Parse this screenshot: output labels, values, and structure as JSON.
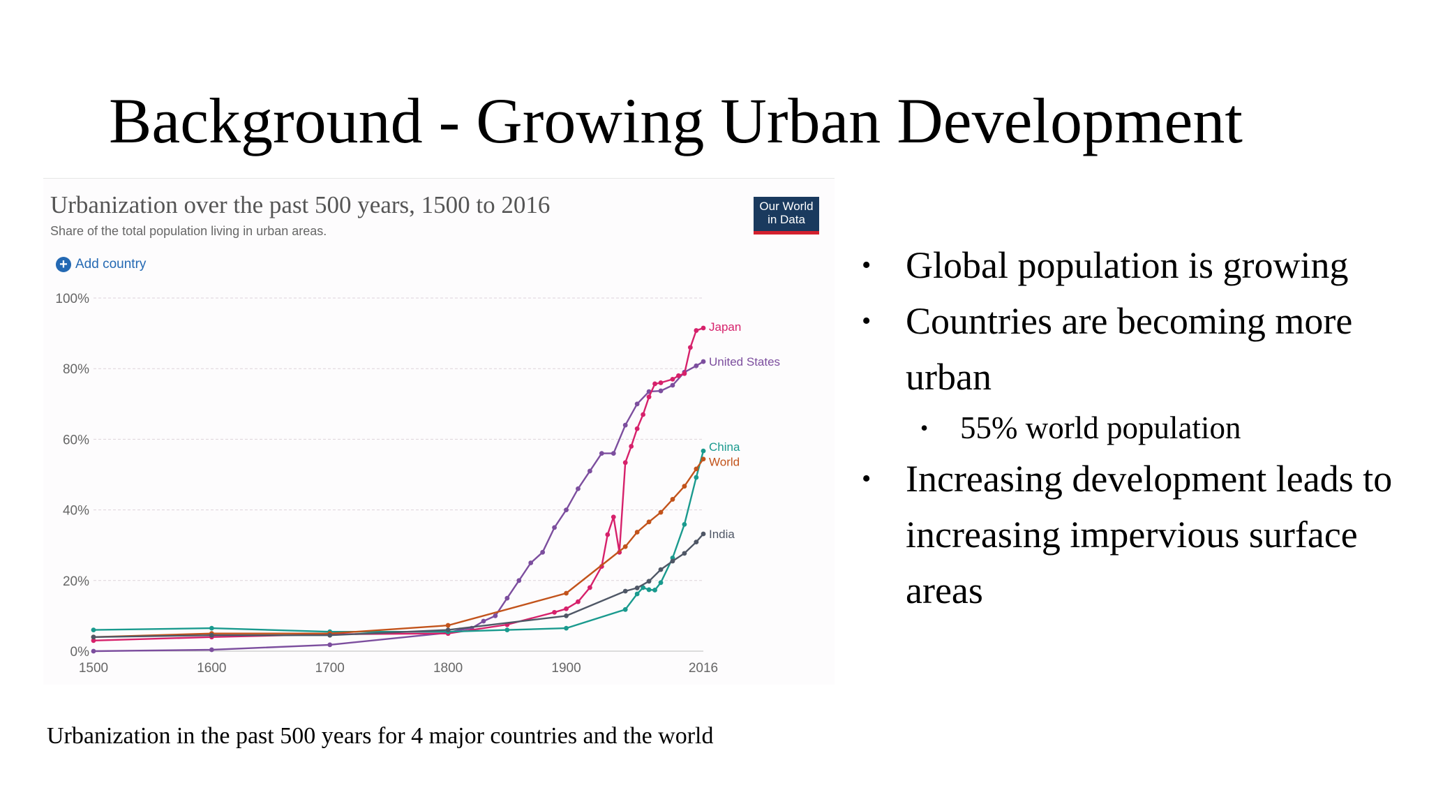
{
  "slide": {
    "title": "Background - Growing Urban Development",
    "caption": "Urbanization in the past 500 years for 4 major countries and the world",
    "bullets": [
      "Global population is growing",
      "Countries are becoming more urban",
      "Increasing development leads to increasing impervious surface areas"
    ],
    "sub_bullets": [
      "55% world population"
    ]
  },
  "chart_header": {
    "title": "Urbanization over the past 500 years, 1500 to 2016",
    "subtitle": "Share of the total population living in urban areas.",
    "logo_line1": "Our World",
    "logo_line2": "in Data",
    "add_country_label": "Add country",
    "add_icon": "plus-circle-icon"
  },
  "colors": {
    "Japan": "#d6216b",
    "United States": "#7c4e9e",
    "China": "#1a9a8e",
    "World": "#c2531b",
    "India": "#4f5766",
    "owid_navy": "#1a3a5e",
    "owid_red": "#d3202e",
    "link_blue": "#2469b3"
  },
  "chart_data": {
    "type": "line",
    "title": "Urbanization over the past 500 years, 1500 to 2016",
    "subtitle": "Share of the total population living in urban areas.",
    "xlabel": "",
    "ylabel": "",
    "xlim": [
      1500,
      2016
    ],
    "ylim": [
      0,
      100
    ],
    "x_ticks": [
      "1500",
      "1600",
      "1700",
      "1800",
      "1900",
      "2016"
    ],
    "y_ticks": [
      "0%",
      "20%",
      "40%",
      "60%",
      "80%",
      "100%"
    ],
    "grid": true,
    "series": [
      {
        "name": "United States",
        "points": [
          [
            1500,
            0
          ],
          [
            1600,
            0.4
          ],
          [
            1700,
            1.8
          ],
          [
            1800,
            5.2
          ],
          [
            1810,
            6
          ],
          [
            1820,
            6.5
          ],
          [
            1830,
            8.5
          ],
          [
            1840,
            10
          ],
          [
            1850,
            15
          ],
          [
            1860,
            20
          ],
          [
            1870,
            25
          ],
          [
            1880,
            28
          ],
          [
            1890,
            35
          ],
          [
            1900,
            40
          ],
          [
            1910,
            46
          ],
          [
            1920,
            51
          ],
          [
            1930,
            56
          ],
          [
            1940,
            56
          ],
          [
            1950,
            64
          ],
          [
            1960,
            70
          ],
          [
            1970,
            73.5
          ],
          [
            1980,
            73.7
          ],
          [
            1990,
            75.3
          ],
          [
            2000,
            79
          ],
          [
            2010,
            80.8
          ],
          [
            2016,
            82
          ]
        ]
      },
      {
        "name": "Japan",
        "points": [
          [
            1500,
            3
          ],
          [
            1600,
            4
          ],
          [
            1700,
            4.8
          ],
          [
            1800,
            5
          ],
          [
            1850,
            7.5
          ],
          [
            1890,
            11
          ],
          [
            1900,
            12
          ],
          [
            1910,
            14
          ],
          [
            1920,
            18
          ],
          [
            1930,
            24
          ],
          [
            1935,
            33
          ],
          [
            1940,
            38
          ],
          [
            1945,
            28
          ],
          [
            1950,
            53.4
          ],
          [
            1955,
            58
          ],
          [
            1960,
            63
          ],
          [
            1965,
            67
          ],
          [
            1970,
            72
          ],
          [
            1975,
            75.7
          ],
          [
            1980,
            76
          ],
          [
            1990,
            77
          ],
          [
            1995,
            78
          ],
          [
            2000,
            78.6
          ],
          [
            2005,
            86
          ],
          [
            2010,
            90.8
          ],
          [
            2016,
            91.5
          ]
        ]
      },
      {
        "name": "China",
        "points": [
          [
            1500,
            6
          ],
          [
            1600,
            6.5
          ],
          [
            1700,
            5.5
          ],
          [
            1800,
            5.5
          ],
          [
            1850,
            6
          ],
          [
            1900,
            6.5
          ],
          [
            1950,
            11.8
          ],
          [
            1960,
            16.2
          ],
          [
            1965,
            18
          ],
          [
            1970,
            17.4
          ],
          [
            1975,
            17.3
          ],
          [
            1980,
            19.4
          ],
          [
            1990,
            26.4
          ],
          [
            2000,
            35.9
          ],
          [
            2010,
            49.2
          ],
          [
            2016,
            56.7
          ]
        ]
      },
      {
        "name": "World",
        "points": [
          [
            1500,
            4
          ],
          [
            1600,
            5
          ],
          [
            1700,
            5
          ],
          [
            1800,
            7.3
          ],
          [
            1900,
            16.4
          ],
          [
            1950,
            29.6
          ],
          [
            1960,
            33.7
          ],
          [
            1970,
            36.6
          ],
          [
            1980,
            39.3
          ],
          [
            1990,
            43
          ],
          [
            2000,
            46.7
          ],
          [
            2010,
            51.6
          ],
          [
            2016,
            54.4
          ]
        ]
      },
      {
        "name": "India",
        "points": [
          [
            1500,
            4
          ],
          [
            1600,
            4.5
          ],
          [
            1700,
            4.5
          ],
          [
            1800,
            6
          ],
          [
            1900,
            10
          ],
          [
            1950,
            17
          ],
          [
            1960,
            17.9
          ],
          [
            1970,
            19.8
          ],
          [
            1980,
            23.1
          ],
          [
            1990,
            25.5
          ],
          [
            2000,
            27.7
          ],
          [
            2010,
            30.9
          ],
          [
            2016,
            33.2
          ]
        ]
      }
    ]
  }
}
